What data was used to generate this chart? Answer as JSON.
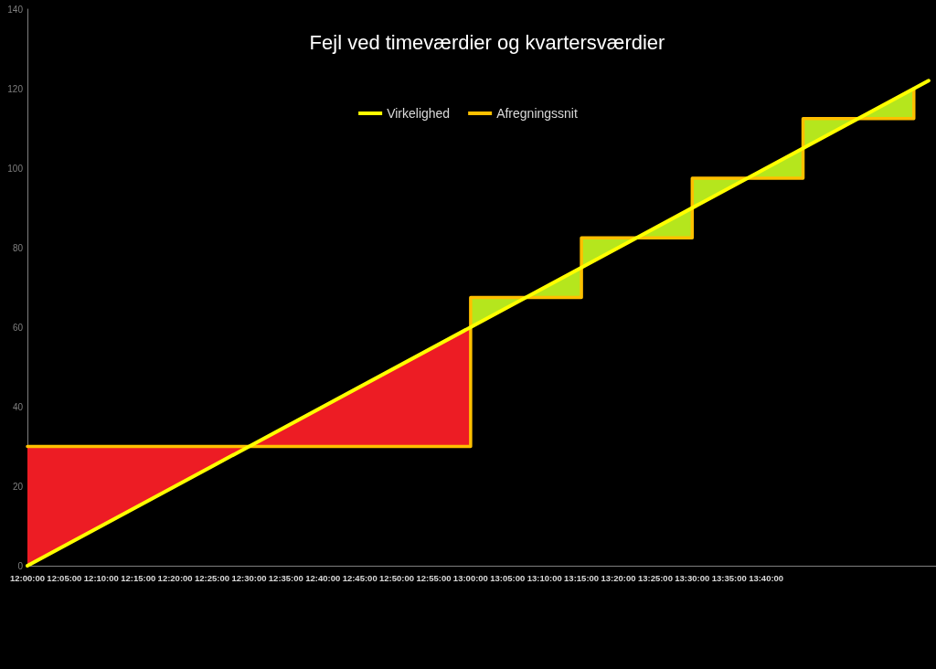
{
  "chart_data": {
    "type": "line",
    "title": "Fejl ved timeværdier og kvartersværdier",
    "xlim": [
      12,
      14.05
    ],
    "xticks": [
      {
        "value": 12,
        "label": "12:00:00"
      },
      {
        "value": 12.0833,
        "label": "12:05:00"
      },
      {
        "value": 12.1667,
        "label": "12:10:00"
      },
      {
        "value": 12.25,
        "label": "12:15:00"
      },
      {
        "value": 12.3333,
        "label": "12:20:00"
      },
      {
        "value": 12.4167,
        "label": "12:25:00"
      },
      {
        "value": 12.5,
        "label": "12:30:00"
      },
      {
        "value": 12.5833,
        "label": "12:35:00"
      },
      {
        "value": 12.6667,
        "label": "12:40:00"
      },
      {
        "value": 12.75,
        "label": "12:45:00"
      },
      {
        "value": 12.8333,
        "label": "12:50:00"
      },
      {
        "value": 12.9167,
        "label": "12:55:00"
      },
      {
        "value": 13,
        "label": "13:00:00"
      },
      {
        "value": 13.0833,
        "label": "13:05:00"
      },
      {
        "value": 13.1667,
        "label": "13:10:00"
      },
      {
        "value": 13.25,
        "label": "13:15:00"
      },
      {
        "value": 13.3333,
        "label": "13:20:00"
      },
      {
        "value": 13.4167,
        "label": "13:25:00"
      },
      {
        "value": 13.5,
        "label": "13:30:00"
      },
      {
        "value": 13.5833,
        "label": "13:35:00"
      },
      {
        "value": 13.6667,
        "label": "13:40:00"
      }
    ],
    "ylim": [
      0,
      140
    ],
    "yticks": [
      0,
      20,
      40,
      60,
      80,
      100,
      120,
      140
    ],
    "grid": false,
    "legend": "top",
    "marker": "none",
    "series": [
      {
        "name": "Virkelighed",
        "color": "#ffff00",
        "x": [
          12,
          14.0333
        ],
        "values": [
          0,
          122
        ]
      },
      {
        "name": "Afregningssnit",
        "type": "step",
        "color": "#ffc000",
        "x": [
          12,
          13,
          13.25,
          13.5,
          13.75,
          14
        ],
        "values": [
          30,
          67.5,
          82.5,
          97.5,
          112.5,
          120
        ]
      },
      {
        "color": "#ed1c24",
        "x": [
          12,
          12.5,
          13
        ],
        "values": [
          null,
          null,
          null
        ],
        "lower": [
          0,
          30,
          30
        ],
        "upper": [
          30,
          30,
          60
        ]
      },
      {
        "color": "#b5e61d",
        "x": [
          13,
          13.125,
          13.25,
          13.25,
          13.375,
          13.5,
          13.5,
          13.625,
          13.75,
          13.75,
          13.875,
          14
        ],
        "values": [
          null,
          null,
          null,
          null,
          null,
          null,
          null,
          null,
          null,
          null,
          null,
          null
        ],
        "lower": [
          60,
          67.5,
          67.5,
          75,
          82.5,
          82.5,
          90,
          97.5,
          97.5,
          105,
          112.5,
          112.5
        ],
        "upper": [
          67.5,
          67.5,
          75,
          82.5,
          82.5,
          90,
          97.5,
          97.5,
          105,
          112.5,
          112.5,
          120
        ]
      }
    ]
  }
}
